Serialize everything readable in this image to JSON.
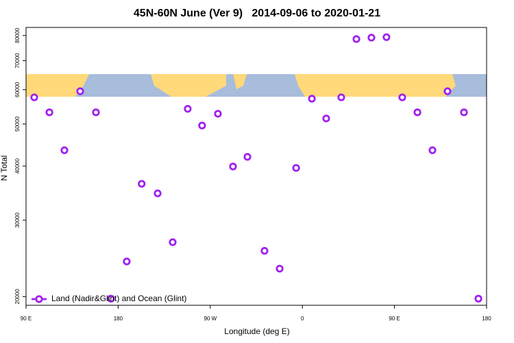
{
  "chart_data": {
    "type": "scatter",
    "title": "45N-60N June (Ver 9)   2014-09-06 to 2020-01-21",
    "xlabel": "Longitude (deg E)",
    "ylabel": "N Total",
    "log_y": true,
    "legend": "bottom-left",
    "series": [
      {
        "name": "Land (Nadir&Glint) and Ocean (Glint)",
        "color": "#a020f0",
        "x": [
          98,
          112.8,
          127.5,
          142.9,
          158.3,
          173,
          188.4,
          203,
          218.6,
          233.3,
          248,
          262,
          277.5,
          292.2,
          306.3,
          323,
          337.8,
          353.9,
          369.3,
          383.3,
          398,
          412.8,
          427.5,
          442.2,
          457.6,
          472.4,
          487.1,
          501.8,
          517.9,
          532
        ],
        "values": [
          57600,
          53200,
          43500,
          59500,
          53200,
          19780,
          24100,
          36400,
          34600,
          26700,
          54200,
          49600,
          52800,
          39900,
          42000,
          25500,
          23200,
          39600,
          57200,
          51500,
          57600,
          78500,
          79100,
          79300,
          57600,
          53200,
          43500,
          59500,
          53200,
          19780
        ]
      }
    ],
    "xlim": [
      90,
      540
    ],
    "xticks": [
      {
        "value": 90,
        "label": "90 E"
      },
      {
        "value": 180,
        "label": "180"
      },
      {
        "value": 270,
        "label": "90 W"
      },
      {
        "value": 360,
        "label": "0"
      },
      {
        "value": 450,
        "label": "90 E"
      },
      {
        "value": 540,
        "label": "180"
      }
    ],
    "ylim": [
      19100,
      83500
    ],
    "yticks": [
      20000,
      30000,
      40000,
      50000,
      60000,
      70000,
      80000
    ]
  }
}
